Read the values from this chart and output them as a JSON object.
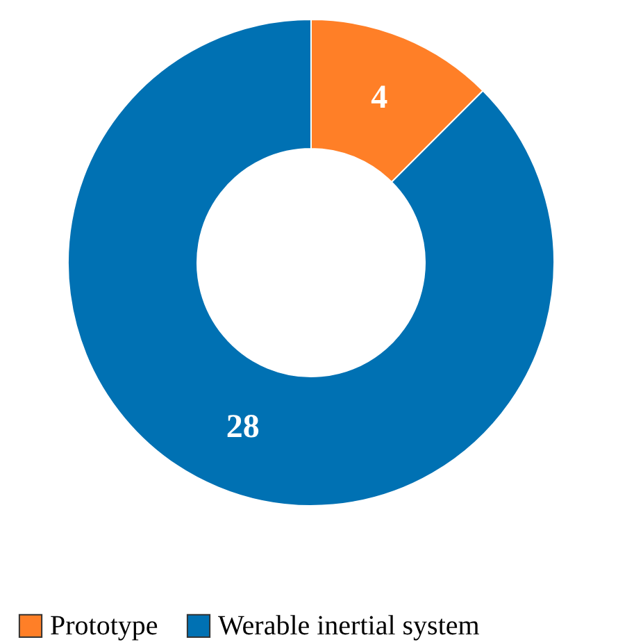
{
  "chart_data": {
    "type": "donut",
    "categories": [
      "Prototype",
      "Werable inertial system"
    ],
    "values": [
      4,
      28
    ],
    "colors": [
      "#ff7f27",
      "#0071b3"
    ],
    "data_labels": true,
    "legend": "bottom"
  }
}
